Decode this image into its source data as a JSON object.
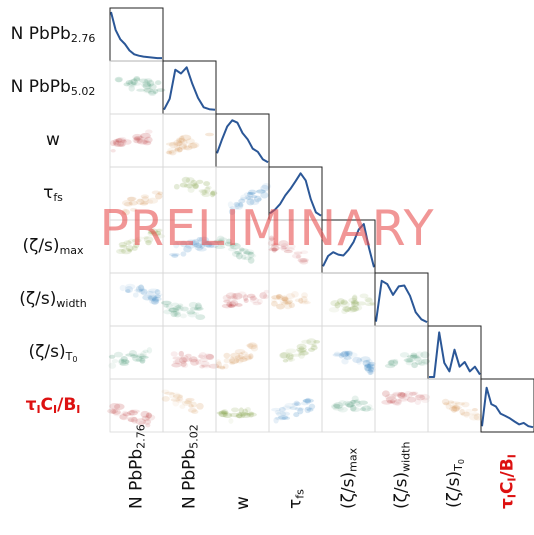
{
  "chart_data": {
    "type": "corner-plot",
    "parameters": [
      {
        "key": "npbpb276",
        "base": "N PbPb",
        "sub": "2.76",
        "highlight": false
      },
      {
        "key": "npbpb502",
        "base": "N PbPb",
        "sub": "5.02",
        "highlight": false
      },
      {
        "key": "w",
        "base": "w",
        "sub": "",
        "highlight": false
      },
      {
        "key": "taufs",
        "base": "τ",
        "sub": "fs",
        "highlight": false
      },
      {
        "key": "zsmax",
        "base": "(ζ/s)",
        "sub": "max",
        "highlight": false
      },
      {
        "key": "zswidth",
        "base": "(ζ/s)",
        "sub": "width",
        "highlight": false
      },
      {
        "key": "zst0",
        "base": "(ζ/s)",
        "sub": "T",
        "subsub": "0",
        "highlight": false
      },
      {
        "key": "taucb",
        "base": "τ",
        "sub": "I",
        "mid": "C",
        "sub2": "I",
        "tail": "/B",
        "sub3": "I",
        "highlight": true
      }
    ],
    "diagonal_marginals": [
      [
        1.0,
        0.62,
        0.42,
        0.32,
        0.18,
        0.1,
        0.07,
        0.05,
        0.04,
        0.03,
        0.02,
        0.02
      ],
      [
        0.05,
        0.28,
        0.9,
        0.82,
        0.95,
        0.6,
        0.3,
        0.1,
        0.06,
        0.05
      ],
      [
        0.25,
        0.55,
        0.82,
        0.95,
        0.9,
        0.68,
        0.55,
        0.35,
        0.28,
        0.12,
        0.06
      ],
      [
        0.1,
        0.18,
        0.3,
        0.48,
        0.62,
        0.78,
        0.95,
        0.8,
        0.4,
        0.12,
        0.05
      ],
      [
        0.1,
        0.32,
        0.4,
        0.35,
        0.33,
        0.45,
        0.62,
        0.88,
        1.0,
        0.5,
        0.08
      ],
      [
        0.05,
        0.92,
        0.85,
        0.62,
        0.8,
        0.82,
        0.6,
        0.25,
        0.1,
        0.04
      ],
      [
        0.0,
        0.0,
        0.95,
        0.3,
        0.12,
        0.58,
        0.22,
        0.32,
        0.12,
        0.22,
        0.05
      ],
      [
        0.08,
        0.9,
        0.55,
        0.5,
        0.35,
        0.3,
        0.25,
        0.18,
        0.12,
        0.15,
        0.08,
        0.06
      ]
    ],
    "line_color": "#2b5797",
    "offdiag_colors": [
      "#2f7fbf",
      "#3a8f6a",
      "#c0474a",
      "#d08a45",
      "#7a9a3a"
    ],
    "watermark": "PRELIMINARY"
  }
}
